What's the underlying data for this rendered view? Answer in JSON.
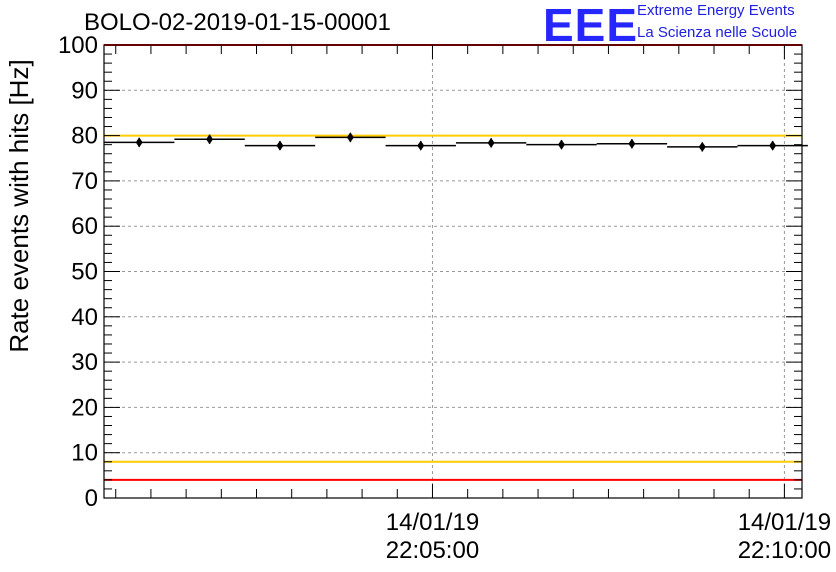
{
  "header": {
    "title": "BOLO-02-2019-01-15-00001",
    "logo_text": "EEE",
    "logo_line1": "Extreme Energy Events",
    "logo_line2": "La Scienza nelle Scuole"
  },
  "colors": {
    "data": "#000000",
    "upper_limit": "#ff0000",
    "lower_limit": "#ff0000",
    "upper_warning": "#ffcc00",
    "lower_warning": "#ffcc00",
    "grid": "#999999",
    "logo": "#2626ff"
  },
  "chart_data": {
    "type": "scatter",
    "title": "BOLO-02-2019-01-15-00001",
    "ylabel": "Rate events with hits [Hz]",
    "ylim": [
      0,
      100
    ],
    "yticks": [
      0,
      10,
      20,
      30,
      40,
      50,
      60,
      70,
      80,
      90,
      100
    ],
    "xlim": [
      "14/01/19 22:00:20",
      "14/01/19 22:10:15"
    ],
    "xticks": [
      {
        "time": "14/01/19 22:05:00",
        "date": "14/01/19",
        "clock": "22:05:00"
      },
      {
        "time": "14/01/19 22:10:00",
        "date": "14/01/19",
        "clock": "22:10:00"
      }
    ],
    "grid": true,
    "series": [
      {
        "points": [
          {
            "x": "22:00:50",
            "y": 78.5,
            "xerr_s": 30,
            "yerr": 1.0
          },
          {
            "x": "22:01:50",
            "y": 79.2,
            "xerr_s": 30,
            "yerr": 1.0
          },
          {
            "x": "22:02:50",
            "y": 77.8,
            "xerr_s": 30,
            "yerr": 1.0
          },
          {
            "x": "22:03:50",
            "y": 79.6,
            "xerr_s": 30,
            "yerr": 1.0
          },
          {
            "x": "22:04:50",
            "y": 77.8,
            "xerr_s": 30,
            "yerr": 1.0
          },
          {
            "x": "22:05:50",
            "y": 78.4,
            "xerr_s": 30,
            "yerr": 1.0
          },
          {
            "x": "22:06:50",
            "y": 78.0,
            "xerr_s": 30,
            "yerr": 1.0
          },
          {
            "x": "22:07:50",
            "y": 78.2,
            "xerr_s": 30,
            "yerr": 1.0
          },
          {
            "x": "22:08:50",
            "y": 77.5,
            "xerr_s": 30,
            "yerr": 1.0
          },
          {
            "x": "22:09:50",
            "y": 77.8,
            "xerr_s": 30,
            "yerr": 1.0
          }
        ]
      }
    ],
    "reference_lines": [
      {
        "y": 100,
        "color": "#ff0000"
      },
      {
        "y": 80,
        "color": "#ffcc00"
      },
      {
        "y": 8,
        "color": "#ffcc00"
      },
      {
        "y": 4,
        "color": "#ff0000"
      }
    ]
  }
}
